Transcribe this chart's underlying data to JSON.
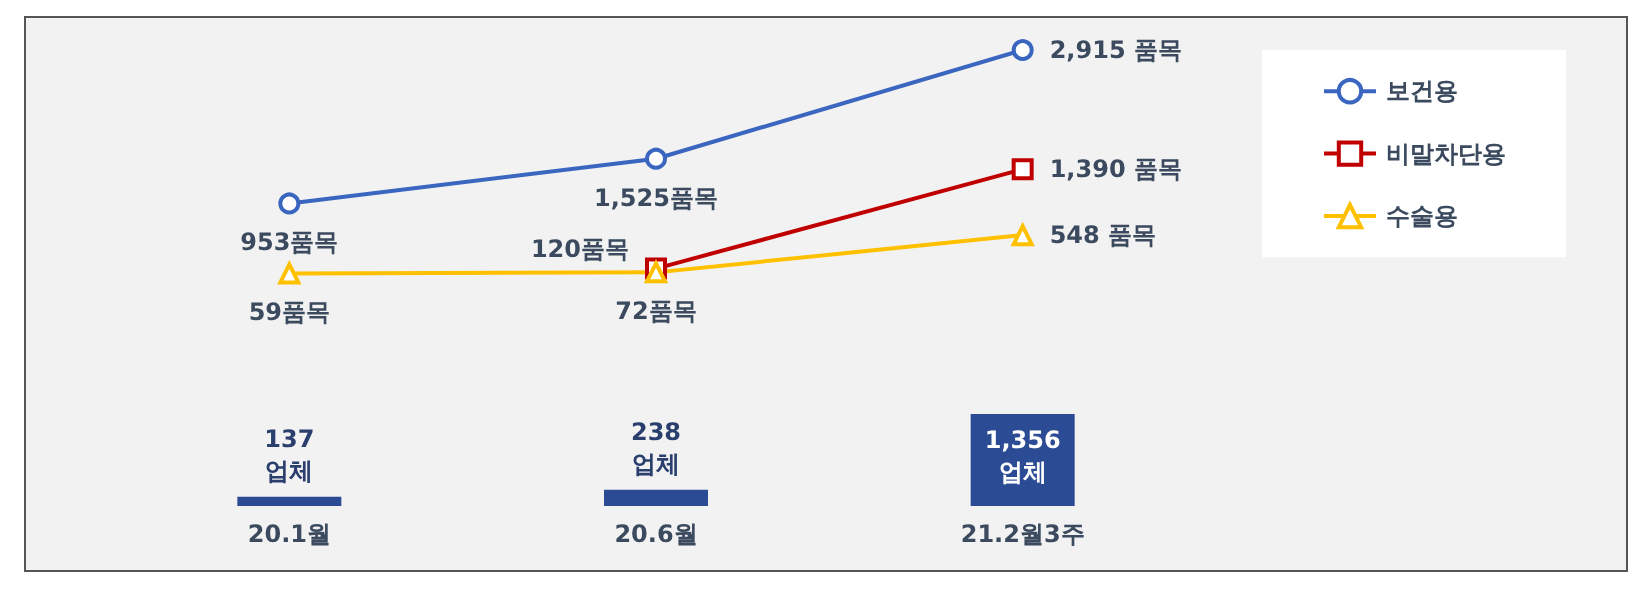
{
  "chart_data": [
    {
      "type": "line",
      "categories": [
        null,
        null,
        null
      ],
      "legend": "right",
      "tick_labels": false,
      "series": [
        {
          "name": "보건용",
          "color": "#3a66c0",
          "marker": "circle",
          "values": [
            953,
            1525,
            2915
          ],
          "value_labels": [
            "953품목",
            "1,525품목",
            "2,915 품목"
          ]
        },
        {
          "name": "비말차단용",
          "color": "#c00000",
          "marker": "square",
          "values": [
            null,
            120,
            1390
          ],
          "value_labels": [
            null,
            "120품목",
            "1,390 품목"
          ]
        },
        {
          "name": "수술용",
          "color": "#ffc000",
          "marker": "triangle",
          "values": [
            59,
            72,
            548
          ],
          "value_labels": [
            "59품목",
            "72품목",
            "548 품목"
          ]
        }
      ]
    },
    {
      "type": "bar",
      "categories": [
        "20.1월",
        "20.6월",
        "21.2월3주"
      ],
      "tick_labels": "x",
      "color": "#2b4c94",
      "values": [
        137,
        238,
        1356
      ],
      "value_labels": [
        "137\n업체",
        "238\n업체",
        "1,356\n업체"
      ]
    }
  ]
}
